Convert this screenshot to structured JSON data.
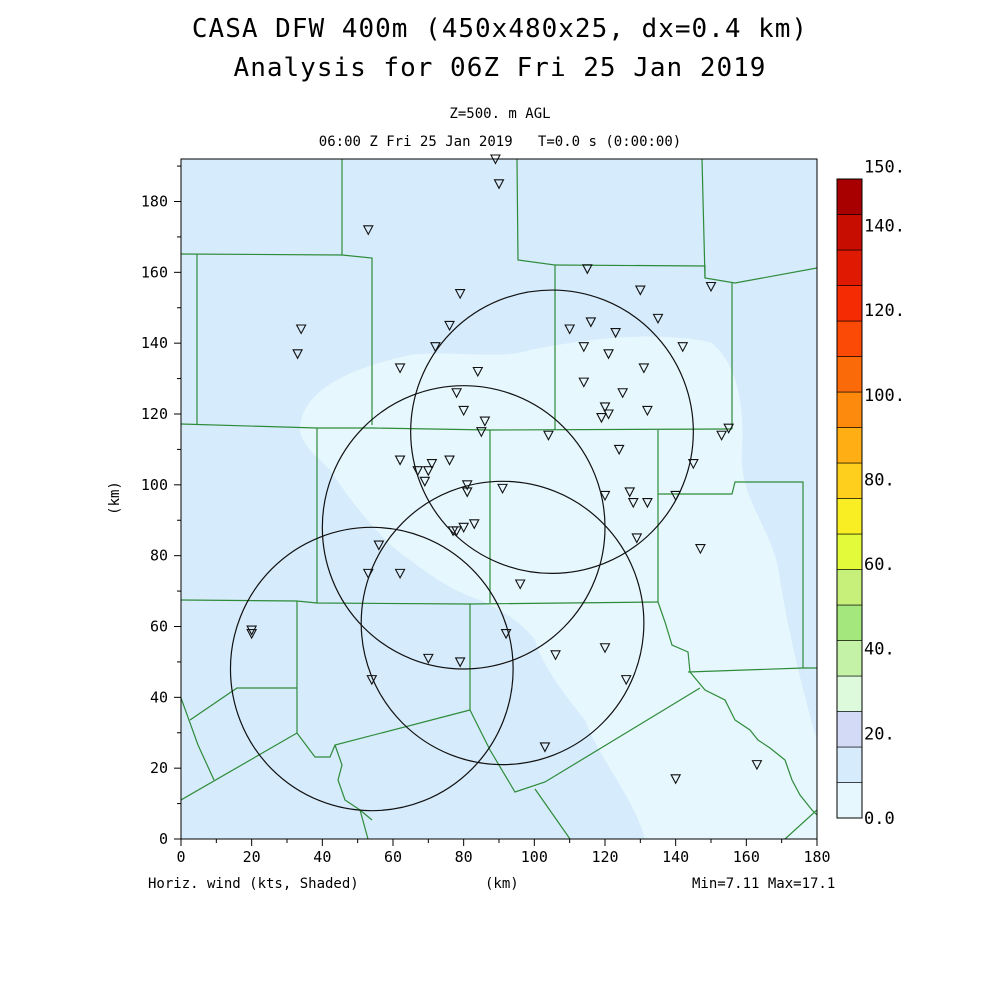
{
  "header": {
    "title_line1": "CASA DFW 400m (450x480x25, dx=0.4 km)",
    "title_line2": "Analysis for 06Z Fri 25 Jan 2019",
    "level": "Z=500. m AGL",
    "time": "06:00 Z Fri 25 Jan 2019   T=0.0 s (0:00:00)"
  },
  "footer": {
    "field": "Horiz. wind (kts, Shaded)",
    "x_unit": "(km)",
    "minmax": "Min=7.11 Max=17.1"
  },
  "axes": {
    "y_label": "(km)",
    "x_ticks": [
      "0",
      "20",
      "40",
      "60",
      "80",
      "100",
      "120",
      "140",
      "160",
      "180"
    ],
    "y_ticks": [
      "0",
      "20",
      "40",
      "60",
      "80",
      "100",
      "120",
      "140",
      "160",
      "180"
    ]
  },
  "colorbar": {
    "labels": [
      "0.0",
      "20.",
      "40.",
      "60.",
      "80.",
      "100.",
      "120.",
      "140.",
      "150."
    ],
    "colors": [
      "#e6f7fd",
      "#d6ebfb",
      "#d2daf6",
      "#ddfadc",
      "#c4f3a8",
      "#a4e77c",
      "#c7f07a",
      "#e2fa3a",
      "#f9ee24",
      "#ffcf1e",
      "#ffae14",
      "#fd8a0d",
      "#fb6a08",
      "#fa4a05",
      "#f52b03",
      "#e01a02",
      "#c70d01",
      "#a80000"
    ]
  },
  "map": {
    "radar_circles_km": [
      {
        "cx": 105,
        "cy": 115
      },
      {
        "cx": 80,
        "cy": 88
      },
      {
        "cx": 91,
        "cy": 61
      },
      {
        "cx": 54,
        "cy": 48
      }
    ],
    "stations_km": [
      [
        89,
        192
      ],
      [
        90,
        185
      ],
      [
        53,
        172
      ],
      [
        34,
        144
      ],
      [
        33,
        137
      ],
      [
        62,
        133
      ],
      [
        76,
        145
      ],
      [
        72,
        139
      ],
      [
        84,
        132
      ],
      [
        78,
        126
      ],
      [
        80,
        121
      ],
      [
        86,
        118
      ],
      [
        85,
        115
      ],
      [
        79,
        154
      ],
      [
        115,
        161
      ],
      [
        130,
        155
      ],
      [
        135,
        147
      ],
      [
        110,
        144
      ],
      [
        116,
        146
      ],
      [
        114,
        139
      ],
      [
        123,
        143
      ],
      [
        121,
        137
      ],
      [
        131,
        133
      ],
      [
        142,
        139
      ],
      [
        114,
        129
      ],
      [
        125,
        126
      ],
      [
        120,
        122
      ],
      [
        121,
        120
      ],
      [
        119,
        119
      ],
      [
        132,
        121
      ],
      [
        104,
        114
      ],
      [
        124,
        110
      ],
      [
        145,
        106
      ],
      [
        150,
        156
      ],
      [
        153,
        114
      ],
      [
        155,
        116
      ],
      [
        62,
        107
      ],
      [
        67,
        104
      ],
      [
        70,
        104
      ],
      [
        71,
        106
      ],
      [
        76,
        107
      ],
      [
        69,
        101
      ],
      [
        81,
        100
      ],
      [
        81,
        98
      ],
      [
        91,
        99
      ],
      [
        120,
        97
      ],
      [
        127,
        98
      ],
      [
        128,
        95
      ],
      [
        132,
        95
      ],
      [
        140,
        97
      ],
      [
        129,
        85
      ],
      [
        147,
        82
      ],
      [
        83,
        89
      ],
      [
        80,
        88
      ],
      [
        77,
        87
      ],
      [
        78,
        87
      ],
      [
        56,
        83
      ],
      [
        53,
        75
      ],
      [
        62,
        75
      ],
      [
        96,
        72
      ],
      [
        20,
        59
      ],
      [
        20,
        58
      ],
      [
        92,
        58
      ],
      [
        120,
        54
      ],
      [
        106,
        52
      ],
      [
        70,
        51
      ],
      [
        79,
        50
      ],
      [
        126,
        45
      ],
      [
        54,
        45
      ],
      [
        103,
        26
      ],
      [
        140,
        17
      ],
      [
        163,
        21
      ]
    ]
  }
}
